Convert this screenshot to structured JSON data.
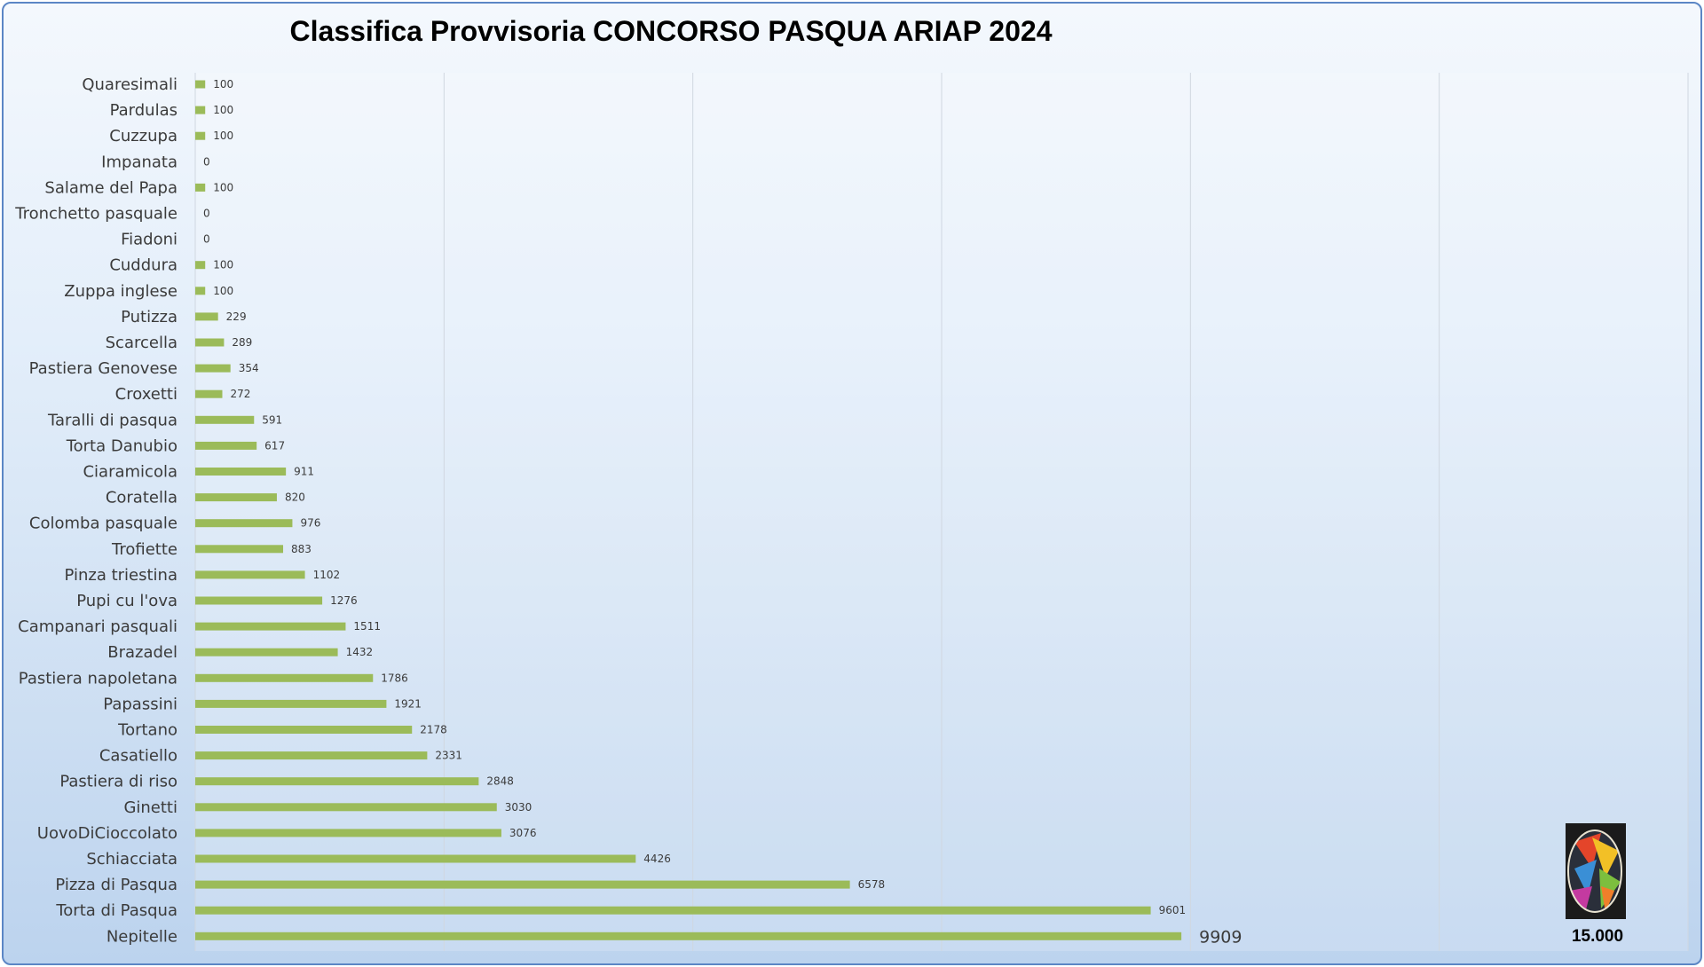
{
  "chart_data": {
    "type": "bar",
    "orientation": "horizontal",
    "title": "Classifica Provvisoria CONCORSO PASQUA ARIAP 2024",
    "xlim": [
      0,
      15000
    ],
    "grid": true,
    "legend": "none",
    "target_label": "15.000",
    "categories": [
      "Quaresimali",
      "Pardulas",
      "Cuzzupa",
      "Impanata",
      "Salame del Papa",
      "Tronchetto pasquale",
      "Fiadoni",
      "Cuddura",
      "Zuppa inglese",
      "Putizza",
      "Scarcella",
      "Pastiera Genovese",
      "Croxetti",
      "Taralli di pasqua",
      "Torta Danubio",
      "Ciaramicola",
      "Coratella",
      "Colomba pasquale",
      "Trofiette",
      "Pinza triestina",
      "Pupi cu l'ova",
      "Campanari pasquali",
      "Brazadel",
      "Pastiera napoletana",
      "Papassini",
      "Tortano",
      "Casatiello",
      "Pastiera di riso",
      "Ginetti",
      "UovoDiCioccolato",
      "Schiacciata",
      "Pizza di Pasqua",
      "Torta di Pasqua",
      "Nepitelle"
    ],
    "values": [
      100,
      100,
      100,
      0,
      100,
      0,
      0,
      100,
      100,
      229,
      289,
      354,
      272,
      591,
      617,
      911,
      820,
      976,
      883,
      1102,
      1276,
      1511,
      1432,
      1786,
      1921,
      2178,
      2331,
      2848,
      3030,
      3076,
      4426,
      6578,
      9601,
      9909
    ],
    "colors": {
      "bar": "#9bbb59",
      "grid": "#d0d7e0",
      "frame": "#5b86c5"
    }
  }
}
